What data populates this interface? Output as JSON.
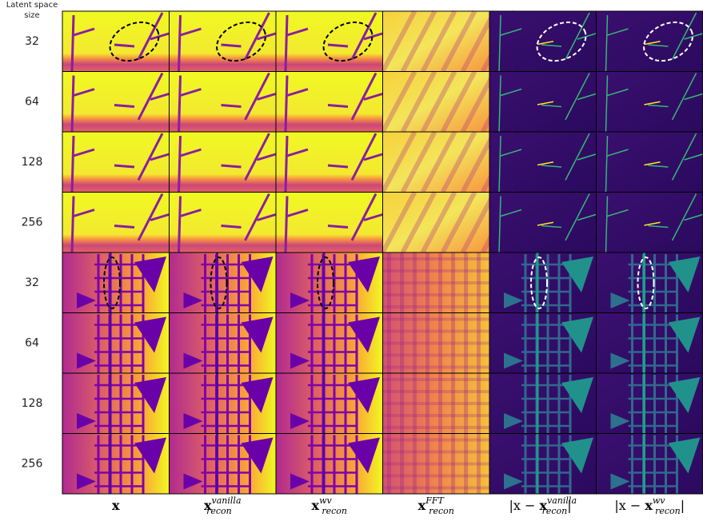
{
  "header": {
    "lines": [
      "Latent space",
      "size"
    ]
  },
  "rows": [
    "32",
    "64",
    "128",
    "256",
    "32",
    "64",
    "128",
    "256"
  ],
  "columns": [
    {
      "main": "x"
    },
    {
      "main": "x",
      "sup": "vanilla",
      "sub": "recon"
    },
    {
      "main": "x",
      "sup": "wv",
      "sub": "recon"
    },
    {
      "main": "x",
      "sup": "FFT",
      "sub": "recon"
    },
    {
      "prefix": "|x − ",
      "main": "x",
      "sup": "vanilla",
      "sub": "recon",
      "suffix": "|"
    },
    {
      "prefix": "|x − ",
      "main": "x",
      "sup": "wv",
      "sub": "recon",
      "suffix": "|"
    }
  ]
}
